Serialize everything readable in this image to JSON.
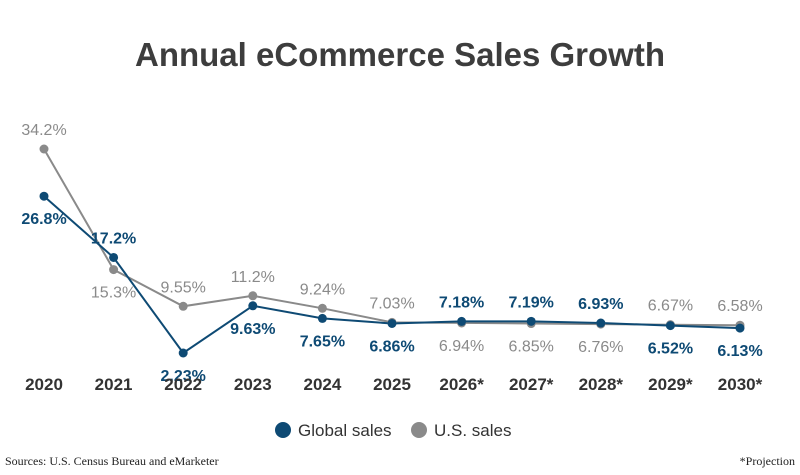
{
  "chart_data": {
    "type": "line",
    "title": "Annual eCommerce Sales Growth",
    "categories": [
      "2020",
      "2021",
      "2022",
      "2023",
      "2024",
      "2025",
      "2026*",
      "2027*",
      "2028*",
      "2029*",
      "2030*"
    ],
    "series": [
      {
        "name": "Global sales",
        "color": "#0e4a74",
        "values": [
          26.8,
          17.2,
          2.23,
          9.63,
          7.65,
          6.86,
          7.18,
          7.19,
          6.93,
          6.52,
          6.13
        ],
        "labels": [
          "26.8%",
          "17.2%",
          "2.23%",
          "9.63%",
          "7.65%",
          "6.86%",
          "7.18%",
          "7.19%",
          "6.93%",
          "6.52%",
          "6.13%"
        ]
      },
      {
        "name": "U.S. sales",
        "color": "#8a8a8a",
        "values": [
          34.2,
          15.3,
          9.55,
          11.2,
          9.24,
          7.03,
          6.94,
          6.85,
          6.76,
          6.67,
          6.58
        ],
        "labels": [
          "34.2%",
          "15.3%",
          "9.55%",
          "11.2%",
          "9.24%",
          "7.03%",
          "6.94%",
          "6.85%",
          "6.76%",
          "6.67%",
          "6.58%"
        ]
      }
    ],
    "ylim": [
      2.23,
      34.2
    ],
    "grid": false,
    "legend_position": "bottom-center"
  },
  "footer": {
    "source": "Sources: U.S. Census Bureau and eMarketer",
    "note": "*Projection"
  }
}
